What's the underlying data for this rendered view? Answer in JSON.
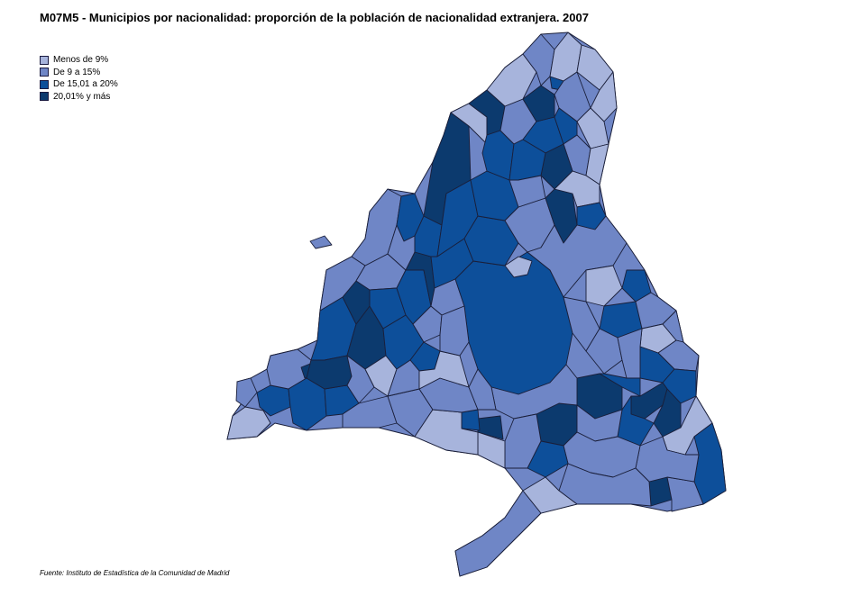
{
  "title": "M07M5 - Municipios por nacionalidad: proporción de la población de nacionalidad extranjera. 2007",
  "legend": [
    {
      "label": "Menos de 9%",
      "color": "#a7b4dc"
    },
    {
      "label": "De 9 a 15%",
      "color": "#6f86c6"
    },
    {
      "label": "De 15,01 a 20%",
      "color": "#0d4f9a"
    },
    {
      "label": "20,01% y más",
      "color": "#0c3a6e"
    }
  ],
  "source": "Fuente: Instituto de Estadística de la Comunidad de Madrid"
}
